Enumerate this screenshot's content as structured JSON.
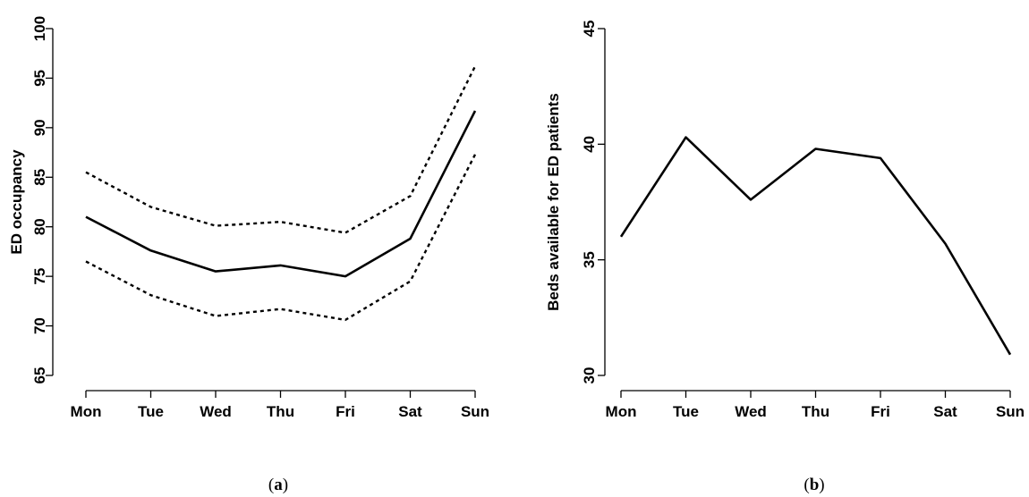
{
  "chart_data": [
    {
      "type": "line",
      "panel_label": {
        "open": "(",
        "letter": "a",
        "close": ")"
      },
      "title": "",
      "xlabel": "",
      "ylabel": "ED occupancy",
      "categories": [
        "Mon",
        "Tue",
        "Wed",
        "Thu",
        "Fri",
        "Sat",
        "Sun"
      ],
      "ylim": [
        65,
        100
      ],
      "yticks": [
        65,
        70,
        75,
        80,
        85,
        90,
        95,
        100
      ],
      "grid": false,
      "legend": "none",
      "series": [
        {
          "style": "solid",
          "values": [
            81.0,
            77.6,
            75.5,
            76.1,
            75.0,
            78.8,
            91.7
          ]
        },
        {
          "style": "dotted",
          "values": [
            85.5,
            82.0,
            80.1,
            80.5,
            79.4,
            83.1,
            96.2
          ]
        },
        {
          "style": "dotted",
          "values": [
            76.5,
            73.1,
            71.0,
            71.7,
            70.6,
            74.5,
            87.3
          ]
        }
      ]
    },
    {
      "type": "line",
      "panel_label": {
        "open": "(",
        "letter": "b",
        "close": ")"
      },
      "title": "",
      "xlabel": "",
      "ylabel": "Beds available for ED patients",
      "categories": [
        "Mon",
        "Tue",
        "Wed",
        "Thu",
        "Fri",
        "Sat",
        "Sun"
      ],
      "ylim": [
        30,
        45
      ],
      "yticks": [
        30,
        35,
        40,
        45
      ],
      "grid": false,
      "legend": "none",
      "series": [
        {
          "style": "solid",
          "values": [
            36.0,
            40.3,
            37.6,
            39.8,
            39.4,
            35.7,
            30.9
          ]
        }
      ]
    }
  ]
}
